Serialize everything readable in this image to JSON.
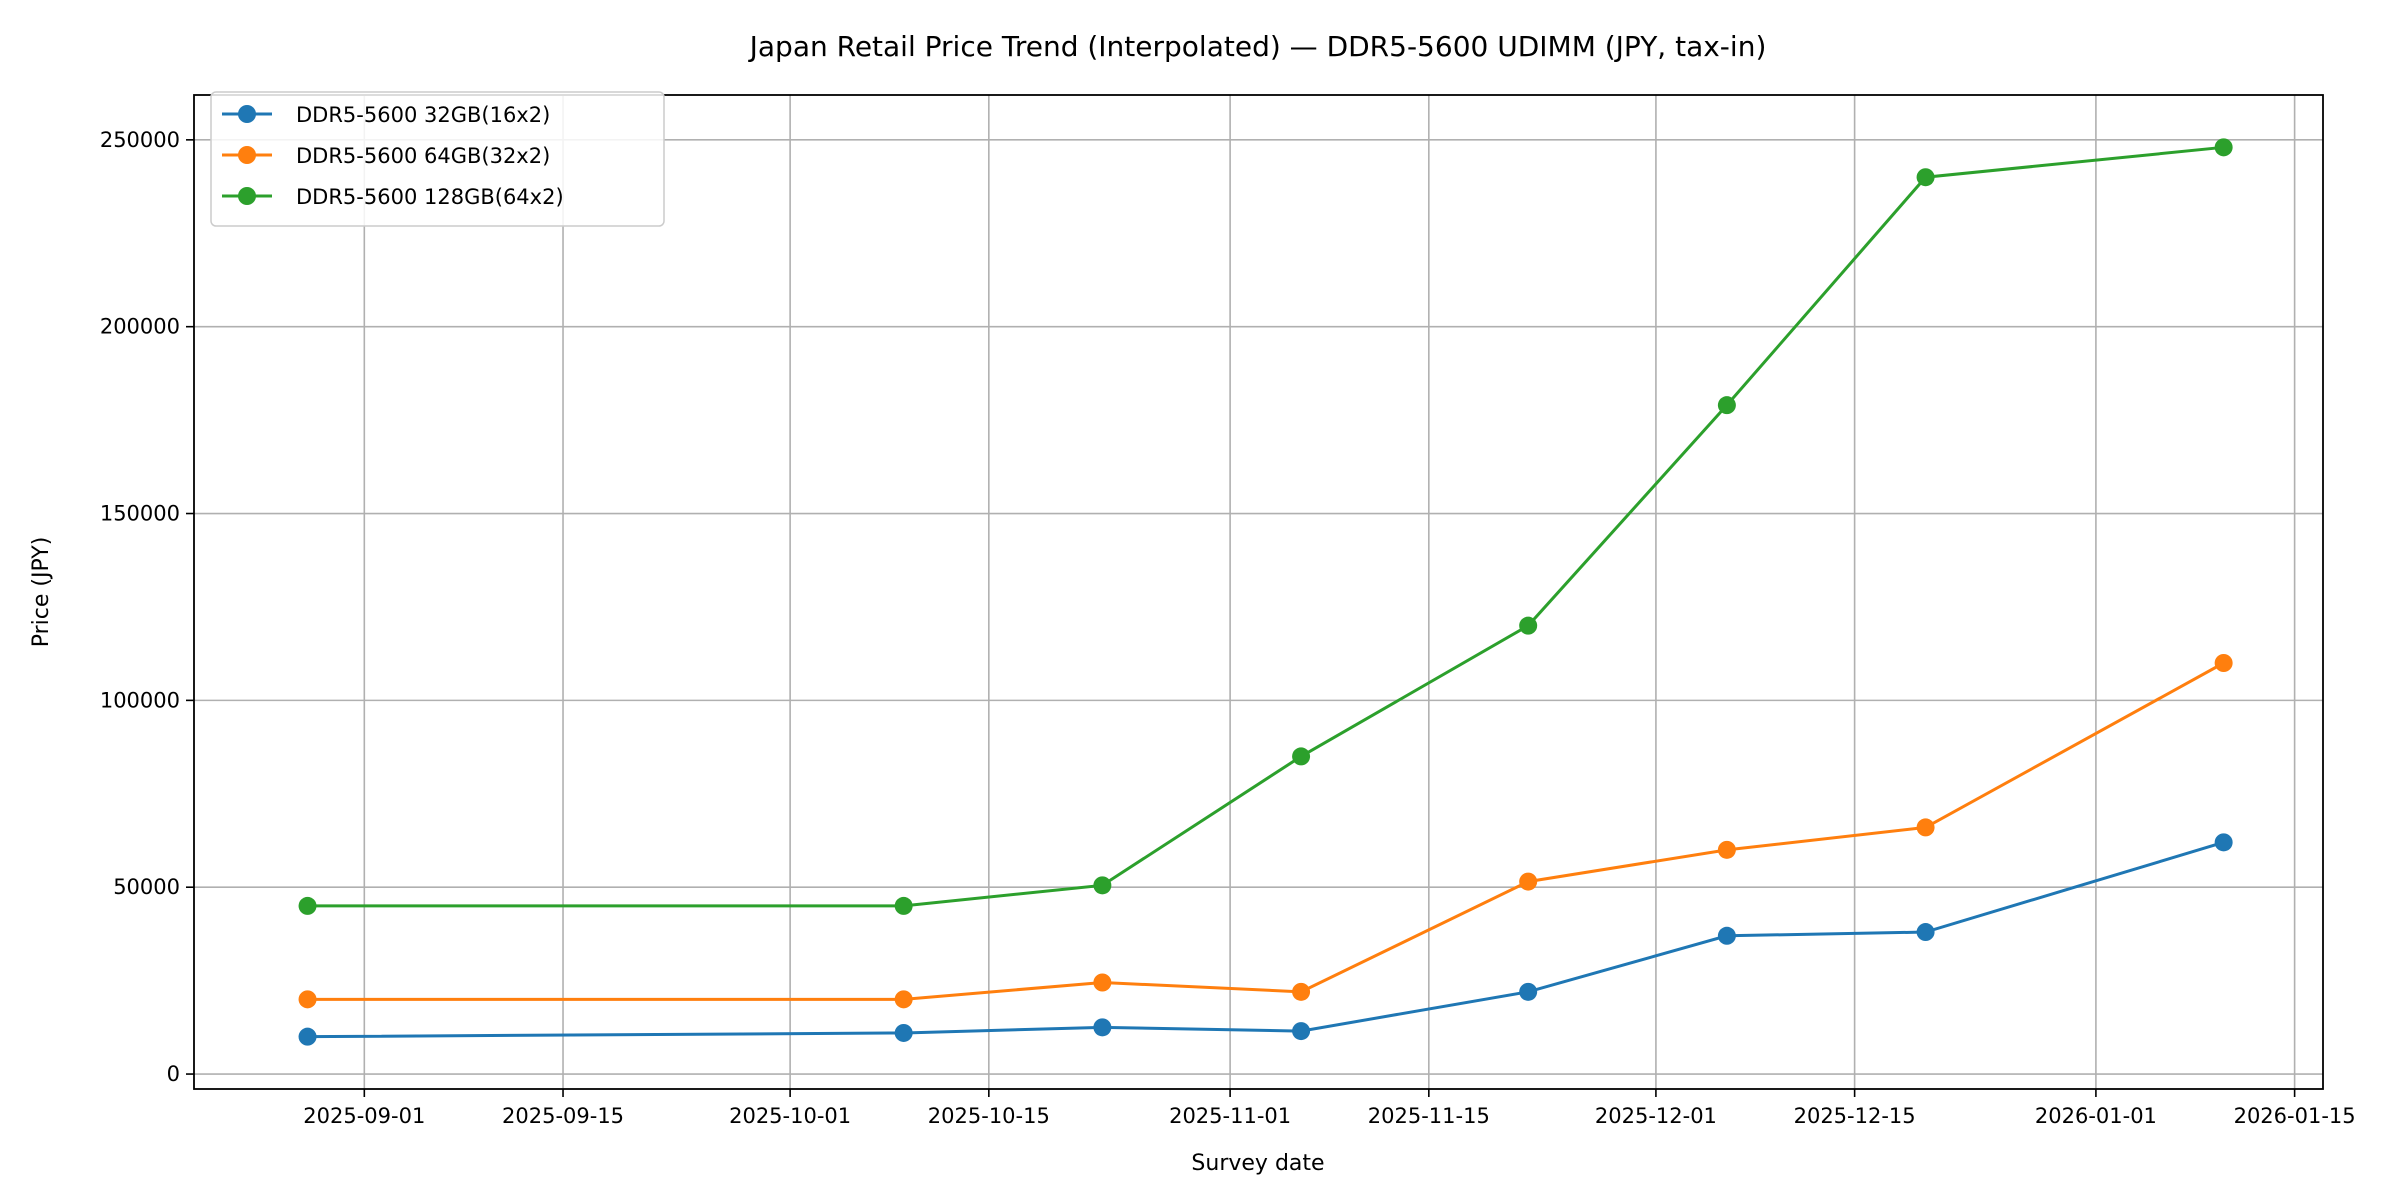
{
  "chart_data": {
    "type": "line",
    "title": "Japan Retail Price Trend (Interpolated) — DDR5-5600 UDIMM (JPY, tax-in)",
    "xlabel": "Survey date",
    "ylabel": "Price (JPY)",
    "x": [
      "2025-08-28",
      "2025-10-09",
      "2025-10-23",
      "2025-11-06",
      "2025-11-22",
      "2025-12-06",
      "2025-12-20",
      "2026-01-10"
    ],
    "xlim": [
      "2025-08-20",
      "2026-01-17"
    ],
    "ylim": [
      -4000,
      262000
    ],
    "xticks": [
      "2025-09-01",
      "2025-09-15",
      "2025-10-01",
      "2025-10-15",
      "2025-11-01",
      "2025-11-15",
      "2025-12-01",
      "2025-12-15",
      "2026-01-01",
      "2026-01-15"
    ],
    "yticks": [
      0,
      50000,
      100000,
      150000,
      200000,
      250000
    ],
    "ytick_labels": [
      "0",
      "50000",
      "100000",
      "150000",
      "200000",
      "250000"
    ],
    "grid": true,
    "legend_position": "top-left",
    "markers": "circle",
    "series": [
      {
        "name": "DDR5-5600 32GB(16x2)",
        "color": "#1f77b4",
        "values": [
          10000,
          11000,
          12500,
          11500,
          22000,
          37000,
          38000,
          62000
        ]
      },
      {
        "name": "DDR5-5600 64GB(32x2)",
        "color": "#ff7f0e",
        "values": [
          20000,
          20000,
          24500,
          22000,
          51500,
          60000,
          66000,
          110000
        ]
      },
      {
        "name": "DDR5-5600 128GB(64x2)",
        "color": "#2ca02c",
        "values": [
          45000,
          45000,
          50500,
          85000,
          120000,
          179000,
          240000,
          248000
        ]
      }
    ]
  }
}
